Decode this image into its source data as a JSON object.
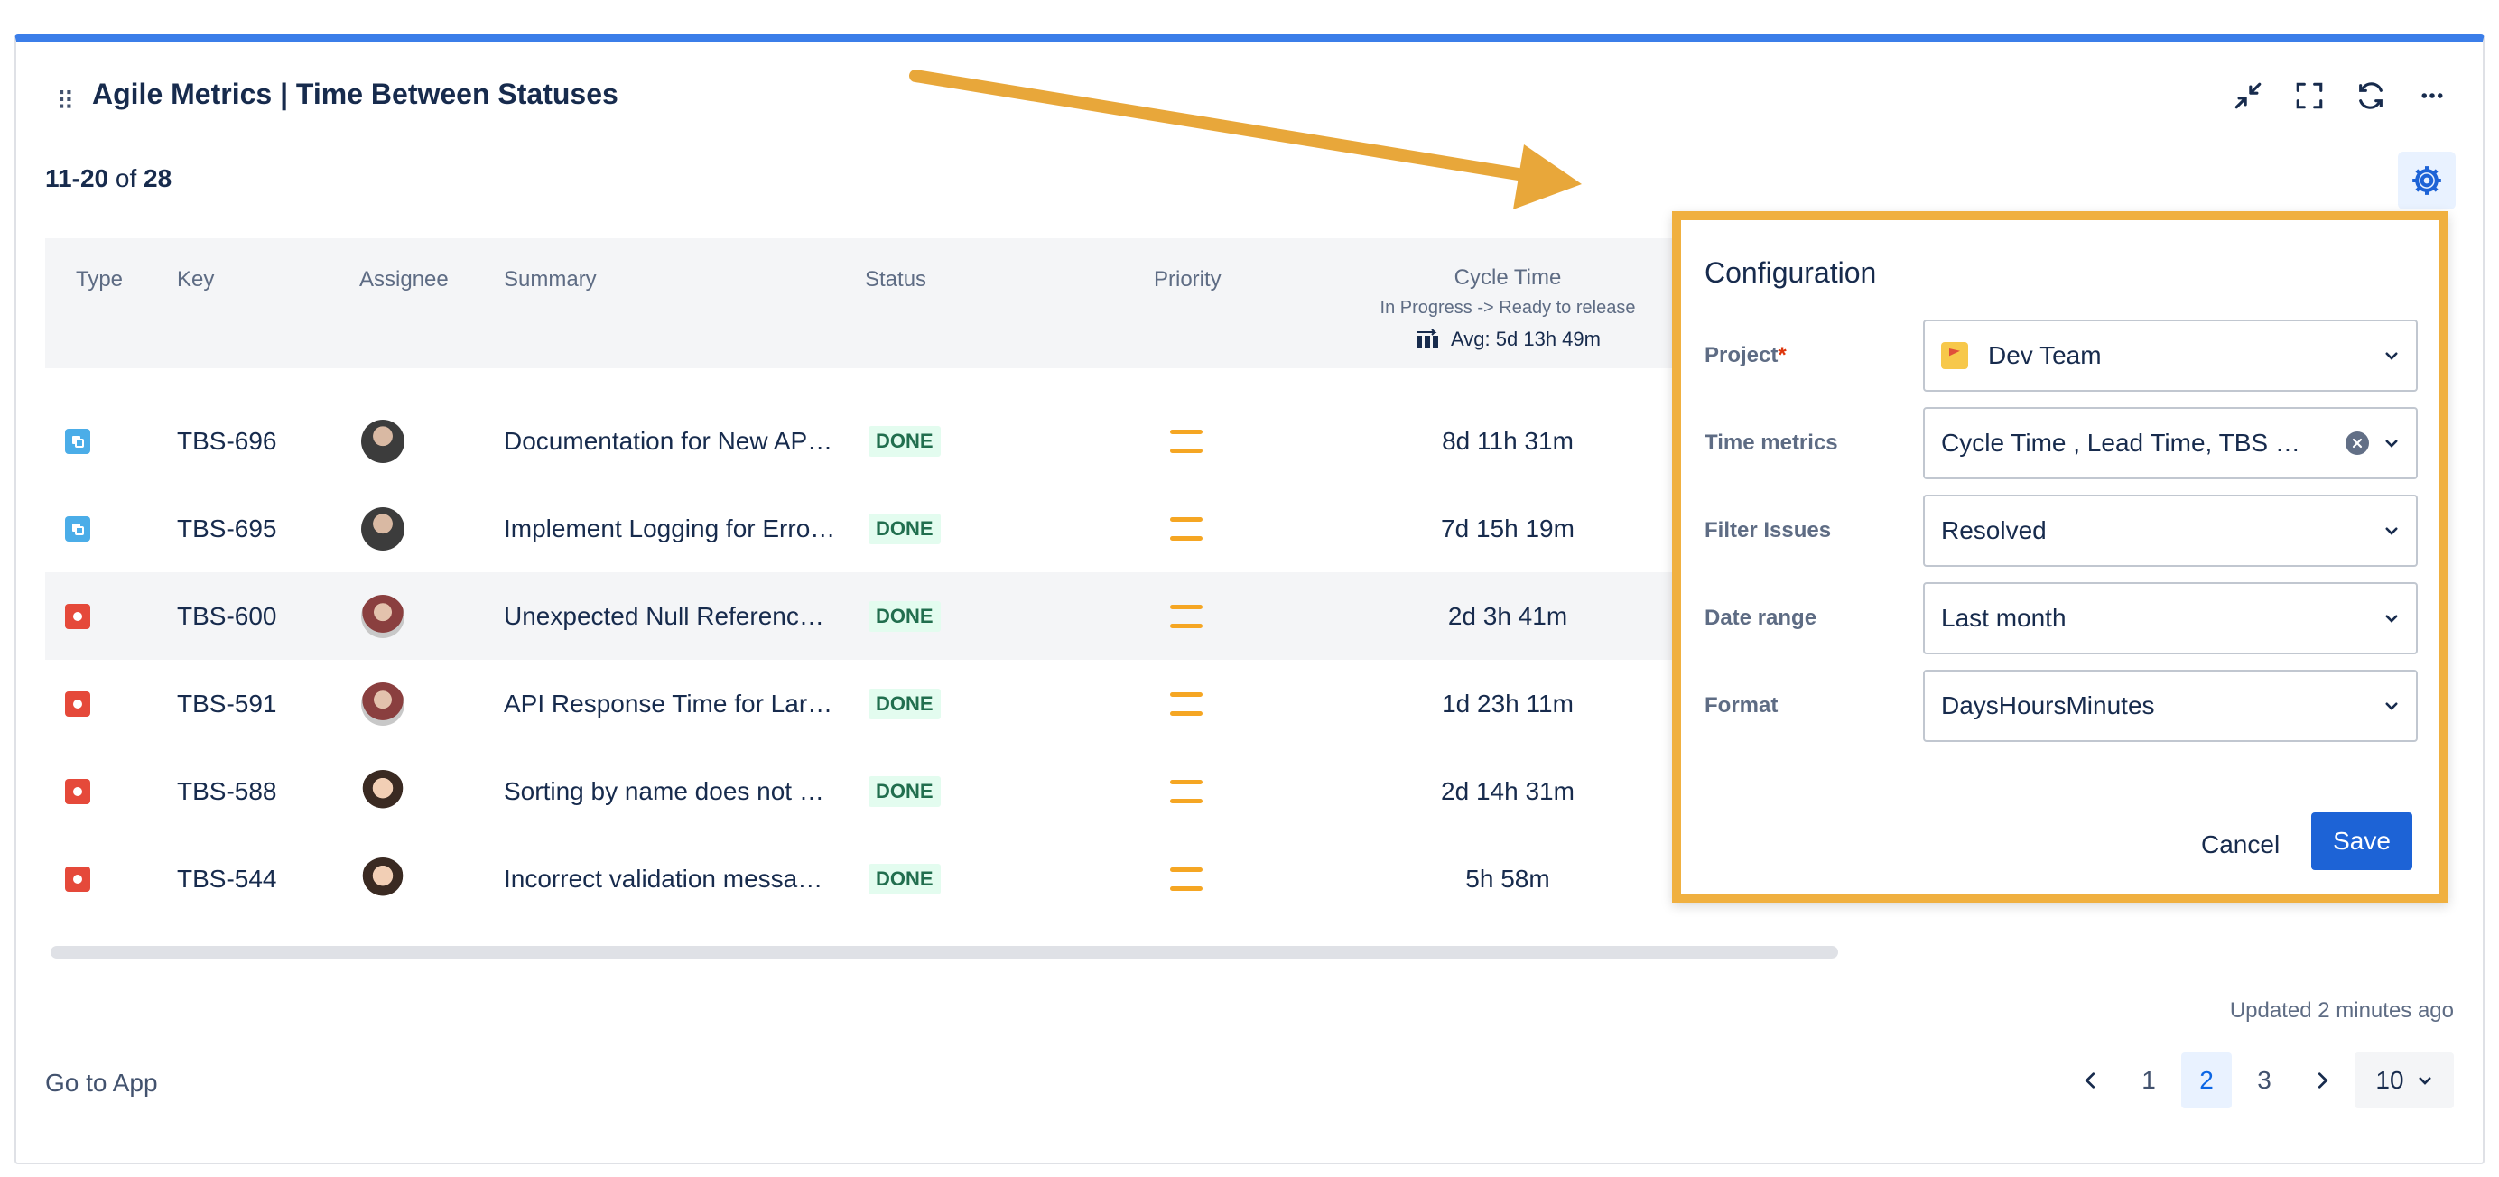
{
  "gadget": {
    "title": "Agile Metrics | Time Between Statuses",
    "drag_glyph": "⠿"
  },
  "icons": {
    "minimize": "minimize-icon",
    "fullscreen": "fullscreen-icon",
    "refresh": "refresh-icon",
    "more": "more-icon",
    "settings": "gear-icon"
  },
  "range": {
    "from": "11",
    "sep": "-",
    "to": "20",
    "of": "of",
    "total": "28"
  },
  "table": {
    "headers": {
      "type": "Type",
      "key": "Key",
      "assignee": "Assignee",
      "summary": "Summary",
      "status": "Status",
      "priority": "Priority",
      "cycle_title": "Cycle Time",
      "cycle_sub": "In Progress -> Ready to release",
      "cycle_avg": "Avg: 5d 13h 49m"
    },
    "rows": [
      {
        "type": "task",
        "key": "TBS-696",
        "summary": "Documentation for New AP…",
        "status": "DONE",
        "priority": "medium",
        "cycle": "8d 11h 31m"
      },
      {
        "type": "task",
        "key": "TBS-695",
        "summary": "Implement Logging for Erro…",
        "status": "DONE",
        "priority": "medium",
        "cycle": "7d 15h 19m"
      },
      {
        "type": "bug",
        "key": "TBS-600",
        "summary": "Unexpected Null Referenc…",
        "status": "DONE",
        "priority": "medium",
        "cycle": "2d 3h 41m"
      },
      {
        "type": "bug",
        "key": "TBS-591",
        "summary": "API Response Time for Lar…",
        "status": "DONE",
        "priority": "medium",
        "cycle": "1d 23h 11m"
      },
      {
        "type": "bug",
        "key": "TBS-588",
        "summary": "Sorting by name does not …",
        "status": "DONE",
        "priority": "medium",
        "cycle": "2d 14h 31m"
      },
      {
        "type": "bug",
        "key": "TBS-544",
        "summary": "Incorrect validation messa…",
        "status": "DONE",
        "priority": "medium",
        "cycle": "5h 58m"
      }
    ]
  },
  "config": {
    "title": "Configuration",
    "project_label": "Project",
    "required_mark": "*",
    "project_value": "Dev Team",
    "time_metrics_label": "Time metrics",
    "time_metrics_value": "Cycle Time , Lead Time, TBS …",
    "filter_label": "Filter Issues",
    "filter_value": "Resolved",
    "date_label": "Date range",
    "date_value": "Last month",
    "format_label": "Format",
    "format_value": "DaysHoursMinutes",
    "cancel": "Cancel",
    "save": "Save"
  },
  "footer": {
    "updated": "Updated 2 minutes ago",
    "go_to_app": "Go to App",
    "pages": [
      "1",
      "2",
      "3"
    ],
    "current_page": "2",
    "page_size": "10"
  },
  "colors": {
    "accent": "#3b7ee9",
    "highlight_box": "#f0b040",
    "done_bg": "#e3fcef",
    "done_text": "#216e4e",
    "priority_medium": "#f5a623"
  }
}
